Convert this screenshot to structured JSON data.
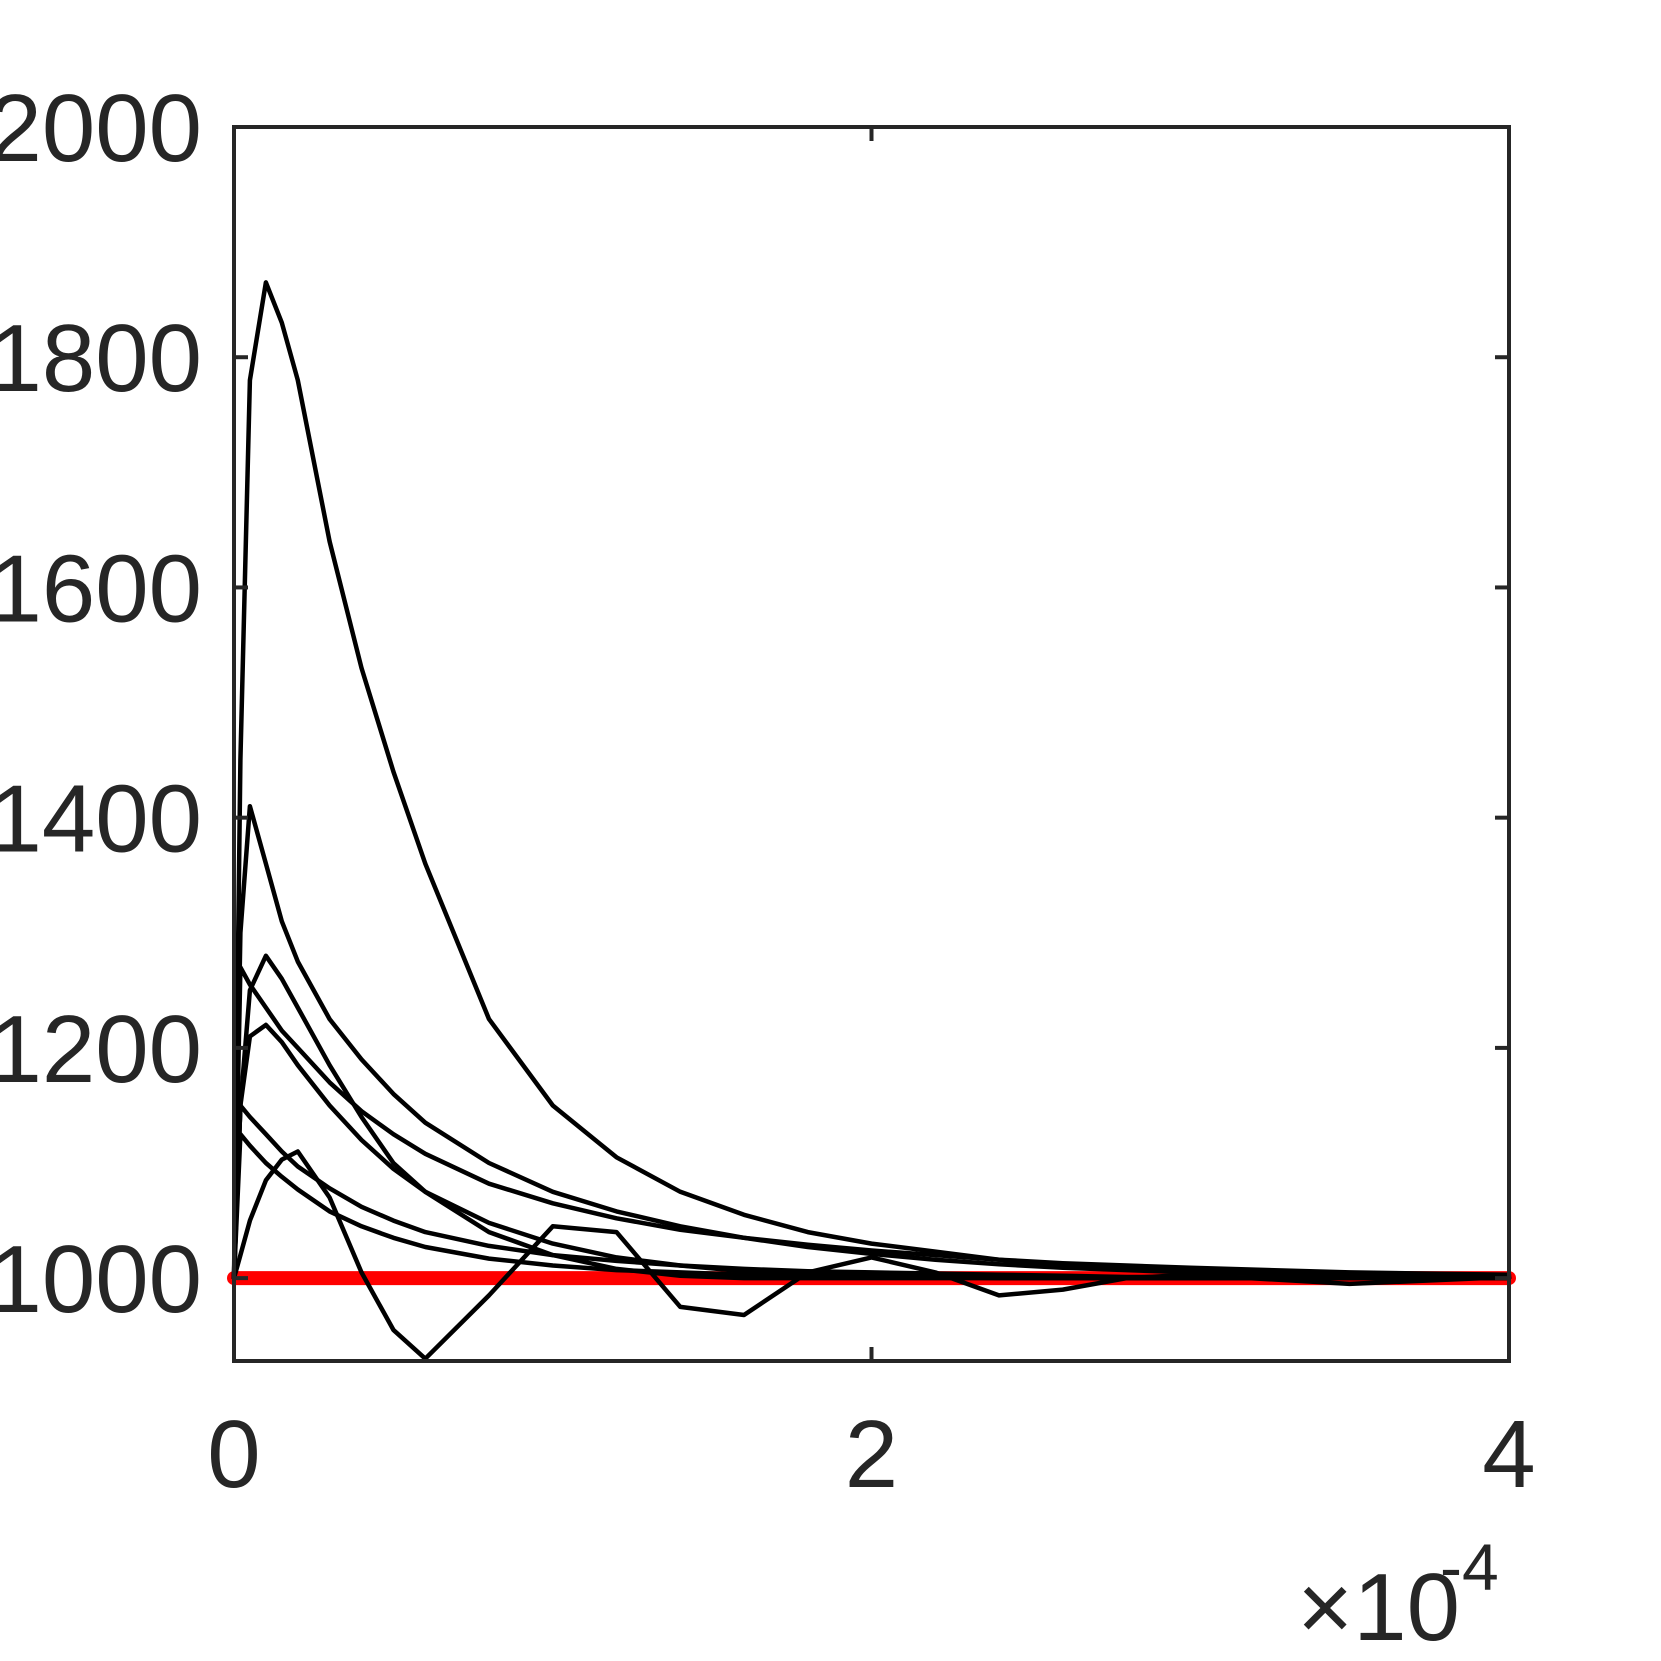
{
  "chart_data": {
    "type": "line",
    "x": [
      0,
      0.02,
      0.05,
      0.1,
      0.15,
      0.2,
      0.3,
      0.4,
      0.5,
      0.6,
      0.8,
      1.0,
      1.2,
      1.4,
      1.6,
      1.8,
      2.0,
      2.2,
      2.4,
      2.6,
      2.8,
      3.0,
      3.5,
      4.0
    ],
    "x_multiplier": "×10",
    "x_exponent": "-4",
    "series": [
      {
        "color": "#ff0000",
        "values": [
          1000,
          1000,
          1000,
          1000,
          1000,
          1000,
          1000,
          1000,
          1000,
          1000,
          1000,
          1000,
          1000,
          1000,
          1000,
          1000,
          1000,
          1000,
          1000,
          1000,
          1000,
          1000,
          1000,
          1000
        ]
      },
      {
        "color": "#000000",
        "values": [
          1000,
          1450,
          1780,
          1865,
          1830,
          1780,
          1640,
          1530,
          1440,
          1360,
          1225,
          1150,
          1105,
          1075,
          1055,
          1040,
          1030,
          1023,
          1016,
          1011,
          1008,
          1006,
          1003,
          1002
        ]
      },
      {
        "color": "#000000",
        "values": [
          1000,
          1300,
          1410,
          1360,
          1310,
          1275,
          1225,
          1190,
          1160,
          1135,
          1100,
          1075,
          1058,
          1045,
          1035,
          1027,
          1021,
          1016,
          1012,
          1009,
          1007,
          1005,
          1003,
          1001
        ]
      },
      {
        "color": "#000000",
        "values": [
          1000,
          1150,
          1250,
          1280,
          1260,
          1235,
          1185,
          1140,
          1100,
          1075,
          1040,
          1020,
          1008,
          1002,
          1000,
          1000,
          1000,
          1000,
          1000,
          1000,
          1000,
          1000,
          1000,
          1000
        ]
      },
      {
        "color": "#000000",
        "values": [
          1000,
          1270,
          1255,
          1235,
          1215,
          1200,
          1170,
          1145,
          1125,
          1108,
          1082,
          1065,
          1052,
          1042,
          1035,
          1029,
          1024,
          1020,
          1016,
          1013,
          1011,
          1009,
          1005,
          1003
        ]
      },
      {
        "color": "#000000",
        "values": [
          1000,
          1150,
          1210,
          1220,
          1205,
          1185,
          1150,
          1120,
          1095,
          1075,
          1048,
          1030,
          1018,
          1011,
          1006,
          1004,
          1003,
          1002,
          1001,
          1001,
          1000,
          1000,
          1000,
          1000
        ]
      },
      {
        "color": "#000000",
        "values": [
          1000,
          1150,
          1140,
          1125,
          1110,
          1097,
          1078,
          1062,
          1050,
          1040,
          1028,
          1020,
          1015,
          1011,
          1008,
          1006,
          1005,
          1004,
          1003,
          1002,
          1001,
          1001,
          1000,
          1000
        ]
      },
      {
        "color": "#000000",
        "values": [
          1000,
          1125,
          1115,
          1100,
          1088,
          1077,
          1058,
          1045,
          1035,
          1027,
          1017,
          1011,
          1007,
          1005,
          1003,
          1002,
          1001,
          1001,
          1000,
          1000,
          1000,
          1000,
          1000,
          1000
        ]
      },
      {
        "color": "#000000",
        "values": [
          1000,
          1020,
          1050,
          1085,
          1103,
          1110,
          1070,
          1005,
          955,
          930,
          985,
          1045,
          1040,
          975,
          968,
          1005,
          1018,
          1005,
          985,
          990,
          1000,
          1003,
          995,
          1001
        ]
      }
    ],
    "xlim": [
      0,
      4
    ],
    "xticks": [
      0,
      2,
      4
    ],
    "ylim": [
      928,
      2000
    ],
    "yticks": [
      1000,
      1200,
      1400,
      1600,
      1800,
      2000
    ],
    "grid": false
  }
}
